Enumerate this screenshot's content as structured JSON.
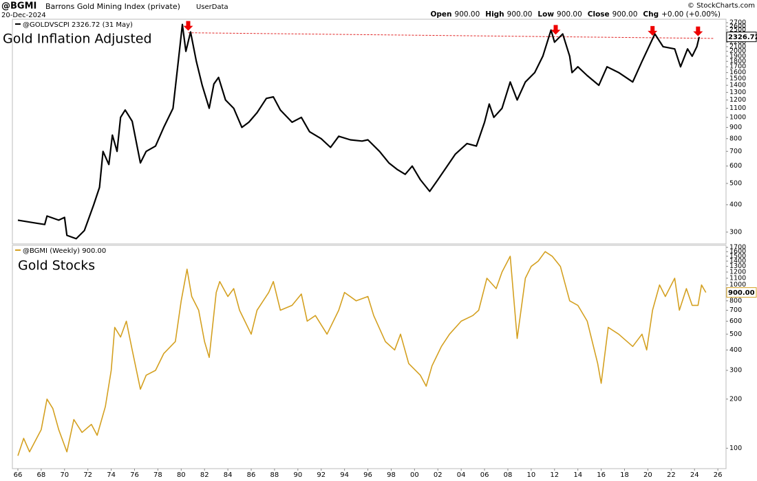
{
  "header": {
    "symbol": "@BGMI",
    "name": "Barrons Gold Mining Index (private)",
    "source": "UserData",
    "date": "20-Dec-2024",
    "copyright": "© StockCharts.com",
    "ohlc": [
      {
        "label": "Open",
        "value": "900.00"
      },
      {
        "label": "High",
        "value": "900.00"
      },
      {
        "label": "Low",
        "value": "900.00"
      },
      {
        "label": "Close",
        "value": "900.00"
      },
      {
        "label": "Chg",
        "value": "+0.00 (+0.00%)"
      }
    ]
  },
  "chart_data": [
    {
      "type": "line",
      "title": "Gold Inflation Adjusted",
      "log_scale": true,
      "xlim": [
        1965.53,
        2026.7
      ],
      "ylim": [
        265,
        2800
      ],
      "yticks": [
        300,
        400,
        500,
        600,
        700,
        800,
        900,
        1000,
        1100,
        1200,
        1300,
        1400,
        1500,
        1600,
        1700,
        1800,
        1900,
        2000,
        2100,
        2200,
        2400,
        2500,
        2600,
        2700
      ],
      "last_value": 2326.72,
      "series": [
        {
          "name": "@GOLDVSCPI 2326.72 (31 May)",
          "color": "#000000",
          "x": [
            1966,
            1967.5,
            1968.3,
            1968.5,
            1969.5,
            1970,
            1970.2,
            1971,
            1971.7,
            1972.5,
            1973,
            1973.3,
            1973.8,
            1974.1,
            1974.5,
            1974.8,
            1975.2,
            1975.8,
            1976.5,
            1977,
            1977.8,
            1978.5,
            1979.3,
            1979.8,
            1980.1,
            1980.4,
            1980.8,
            1981.3,
            1981.8,
            1982.4,
            1982.8,
            1983.2,
            1983.8,
            1984.5,
            1985.2,
            1985.8,
            1986.5,
            1987.3,
            1987.9,
            1988.5,
            1989.5,
            1990.3,
            1991,
            1992,
            1992.8,
            1993.5,
            1994.5,
            1995.5,
            1996,
            1997,
            1997.8,
            1998.5,
            1999.2,
            1999.8,
            2000.5,
            2001.3,
            2002,
            2002.8,
            2003.5,
            2004.5,
            2005.3,
            2006,
            2006.4,
            2006.8,
            2007.5,
            2008.2,
            2008.8,
            2009.5,
            2010.3,
            2011,
            2011.7,
            2012,
            2012.7,
            2013.3,
            2013.5,
            2014,
            2014.8,
            2015.8,
            2016.5,
            2017.5,
            2018.7,
            2019.5,
            2020.6,
            2021.3,
            2022.3,
            2022.8,
            2023.4,
            2023.8,
            2024.2,
            2024.4
          ],
          "values": [
            340,
            330,
            325,
            355,
            340,
            350,
            290,
            280,
            305,
            400,
            480,
            700,
            610,
            830,
            700,
            1000,
            1080,
            960,
            620,
            700,
            740,
            900,
            1100,
            1900,
            2650,
            2000,
            2450,
            1800,
            1400,
            1100,
            1420,
            1520,
            1200,
            1100,
            900,
            950,
            1050,
            1220,
            1240,
            1080,
            950,
            1000,
            860,
            800,
            730,
            820,
            790,
            780,
            790,
            700,
            620,
            580,
            550,
            600,
            520,
            460,
            520,
            600,
            680,
            760,
            740,
            950,
            1150,
            1000,
            1100,
            1450,
            1200,
            1450,
            1600,
            1900,
            2500,
            2200,
            2400,
            1900,
            1600,
            1700,
            1550,
            1400,
            1700,
            1600,
            1450,
            1800,
            2400,
            2100,
            2050,
            1700,
            2050,
            1900,
            2100,
            2326.72
          ]
        }
      ],
      "trendline": {
        "color": "#e02020",
        "x": [
          1980.6,
          2025.6
        ],
        "values": [
          2430,
          2290
        ]
      },
      "arrows_x": [
        1980.6,
        2012.1,
        2020.4,
        2024.3
      ],
      "arrow_color": "#ee0000"
    },
    {
      "type": "line",
      "title": "Gold Stocks",
      "log_scale": true,
      "xlim": [
        1965.53,
        2026.7
      ],
      "ylim": [
        75,
        1750
      ],
      "yticks": [
        100,
        200,
        300,
        400,
        500,
        600,
        700,
        800,
        1000,
        1100,
        1200,
        1300,
        1400,
        1500,
        1600,
        1700
      ],
      "xticks": [
        {
          "value": 1966,
          "label": "66"
        },
        {
          "value": 1968,
          "label": "68"
        },
        {
          "value": 1970,
          "label": "70"
        },
        {
          "value": 1972,
          "label": "72"
        },
        {
          "value": 1974,
          "label": "74"
        },
        {
          "value": 1976,
          "label": "76"
        },
        {
          "value": 1978,
          "label": "78"
        },
        {
          "value": 1980,
          "label": "80"
        },
        {
          "value": 1982,
          "label": "82"
        },
        {
          "value": 1984,
          "label": "84"
        },
        {
          "value": 1986,
          "label": "86"
        },
        {
          "value": 1988,
          "label": "88"
        },
        {
          "value": 1990,
          "label": "90"
        },
        {
          "value": 1992,
          "label": "92"
        },
        {
          "value": 1994,
          "label": "94"
        },
        {
          "value": 1996,
          "label": "96"
        },
        {
          "value": 1998,
          "label": "98"
        },
        {
          "value": 2000,
          "label": "00"
        },
        {
          "value": 2002,
          "label": "02"
        },
        {
          "value": 2004,
          "label": "04"
        },
        {
          "value": 2006,
          "label": "06"
        },
        {
          "value": 2008,
          "label": "08"
        },
        {
          "value": 2010,
          "label": "10"
        },
        {
          "value": 2012,
          "label": "12"
        },
        {
          "value": 2014,
          "label": "14"
        },
        {
          "value": 2016,
          "label": "16"
        },
        {
          "value": 2018,
          "label": "18"
        },
        {
          "value": 2020,
          "label": "20"
        },
        {
          "value": 2022,
          "label": "22"
        },
        {
          "value": 2024,
          "label": "24"
        },
        {
          "value": 2026,
          "label": "26"
        }
      ],
      "last_value": {
        "value": 900,
        "label": "900.00"
      },
      "series": [
        {
          "name": "@BGMI (Weekly) 900.00",
          "color": "#d4a020",
          "x": [
            1966,
            1966.5,
            1967,
            1968,
            1968.5,
            1969,
            1969.5,
            1970.2,
            1970.8,
            1971.5,
            1972.3,
            1972.8,
            1973.5,
            1974,
            1974.3,
            1974.8,
            1975.3,
            1975.8,
            1976.5,
            1977,
            1977.8,
            1978.5,
            1979.5,
            1980,
            1980.5,
            1980.9,
            1981.5,
            1982,
            1982.4,
            1983,
            1983.3,
            1984,
            1984.5,
            1985,
            1986,
            1986.5,
            1987.5,
            1987.9,
            1988.5,
            1989.5,
            1990.3,
            1990.8,
            1991.5,
            1992.5,
            1993.5,
            1994,
            1995,
            1996,
            1996.5,
            1997.5,
            1998.3,
            1998.8,
            1999.5,
            2000.5,
            2001,
            2001.5,
            2002.3,
            2003,
            2004,
            2005,
            2005.5,
            2006.2,
            2007,
            2007.5,
            2008.2,
            2008.8,
            2009.5,
            2010,
            2010.6,
            2011.2,
            2011.8,
            2012.5,
            2013.3,
            2014,
            2014.8,
            2015.7,
            2016,
            2016.6,
            2017.5,
            2018.7,
            2019.5,
            2019.9,
            2020.4,
            2021,
            2021.5,
            2022.3,
            2022.7,
            2023.3,
            2023.8,
            2024.3,
            2024.6,
            2024.97
          ],
          "values": [
            90,
            115,
            95,
            130,
            200,
            175,
            130,
            95,
            150,
            125,
            140,
            120,
            180,
            300,
            550,
            480,
            600,
            400,
            230,
            280,
            300,
            380,
            450,
            800,
            1250,
            850,
            700,
            450,
            360,
            900,
            1050,
            850,
            950,
            700,
            500,
            700,
            900,
            1050,
            700,
            750,
            880,
            600,
            650,
            500,
            700,
            900,
            800,
            850,
            650,
            450,
            400,
            500,
            330,
            280,
            240,
            320,
            420,
            500,
            600,
            650,
            700,
            1100,
            950,
            1200,
            1500,
            470,
            1100,
            1300,
            1400,
            1600,
            1500,
            1300,
            800,
            750,
            600,
            330,
            250,
            550,
            500,
            420,
            500,
            400,
            700,
            1000,
            850,
            1100,
            700,
            950,
            750,
            750,
            1000,
            900
          ]
        }
      ]
    }
  ]
}
